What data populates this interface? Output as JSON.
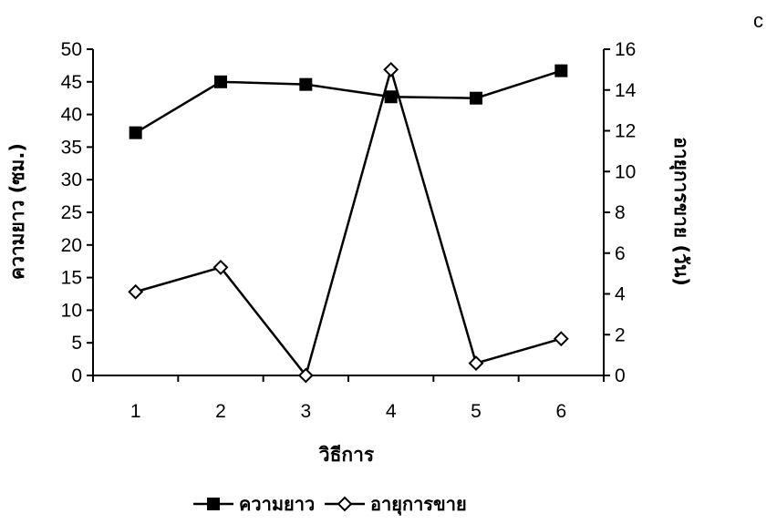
{
  "panel_label": "c",
  "chart_data": {
    "type": "line",
    "title": "",
    "xlabel": "วิธีการ",
    "ylabel_left": "ความยาว (ซม.)",
    "ylabel_right": "อายุการขาย (วัน)",
    "categories": [
      "1",
      "2",
      "3",
      "4",
      "5",
      "6"
    ],
    "ylim_left": [
      0,
      50
    ],
    "yticks_left": [
      0,
      5,
      10,
      15,
      20,
      25,
      30,
      35,
      40,
      45,
      50
    ],
    "ylim_right": [
      0,
      16
    ],
    "yticks_right": [
      0,
      2,
      4,
      6,
      8,
      10,
      12,
      14,
      16
    ],
    "grid": false,
    "legend_position": "bottom",
    "series": [
      {
        "name": "ความยาว",
        "axis": "left",
        "marker": "square",
        "color": "#000000",
        "values": [
          37.2,
          45.0,
          44.6,
          42.7,
          42.5,
          46.7
        ]
      },
      {
        "name": "อายุการขาย",
        "axis": "right",
        "marker": "diamond",
        "color": "#000000",
        "values": [
          4.1,
          5.3,
          0.0,
          15.0,
          0.6,
          1.8
        ]
      }
    ]
  }
}
